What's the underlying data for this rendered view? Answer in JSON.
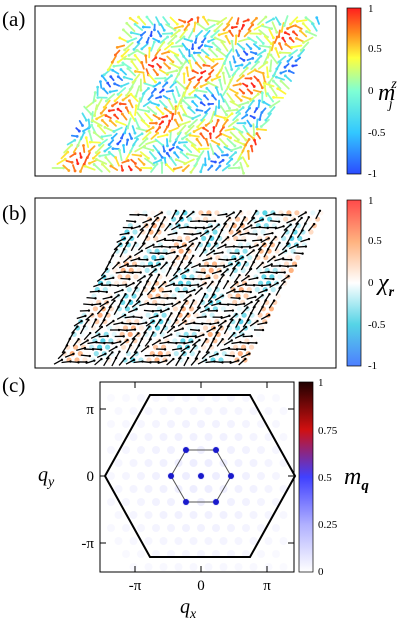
{
  "panels": {
    "a": {
      "label": "(a)",
      "colorbar": {
        "ticks": [
          "1",
          "0.5",
          "0",
          "-0.5",
          "-1"
        ],
        "quantity": "m",
        "sup": "z",
        "sub": "j"
      },
      "colors": [
        "#2b4bff",
        "#32c8ff",
        "#7fffd4",
        "#ffff3c",
        "#ff8c1e",
        "#ff1e1e"
      ]
    },
    "b": {
      "label": "(b)",
      "colorbar": {
        "ticks": [
          "1",
          "0.5",
          "0",
          "-0.5",
          "-1"
        ],
        "quantity": "χ",
        "sub": "r"
      },
      "colors": [
        "#4d7fff",
        "#55d4e6",
        "#ffffff",
        "#ffb27f",
        "#ff4a4a"
      ]
    },
    "c": {
      "label": "(c)",
      "colorbar": {
        "ticks": [
          "1",
          "0.75",
          "0.5",
          "0.25",
          "0"
        ],
        "quantity": "m",
        "sub": "q"
      },
      "colors": [
        "#ffffff",
        "#b0b0ff",
        "#4040ff",
        "#d01010",
        "#200000"
      ],
      "axes": {
        "x_ticks": [
          "-π",
          "0",
          "π"
        ],
        "y_ticks": [
          "π",
          "0",
          "-π"
        ],
        "xlabel": "q",
        "xlabel_sub": "x",
        "ylabel": "q",
        "ylabel_sub": "y"
      }
    }
  }
}
